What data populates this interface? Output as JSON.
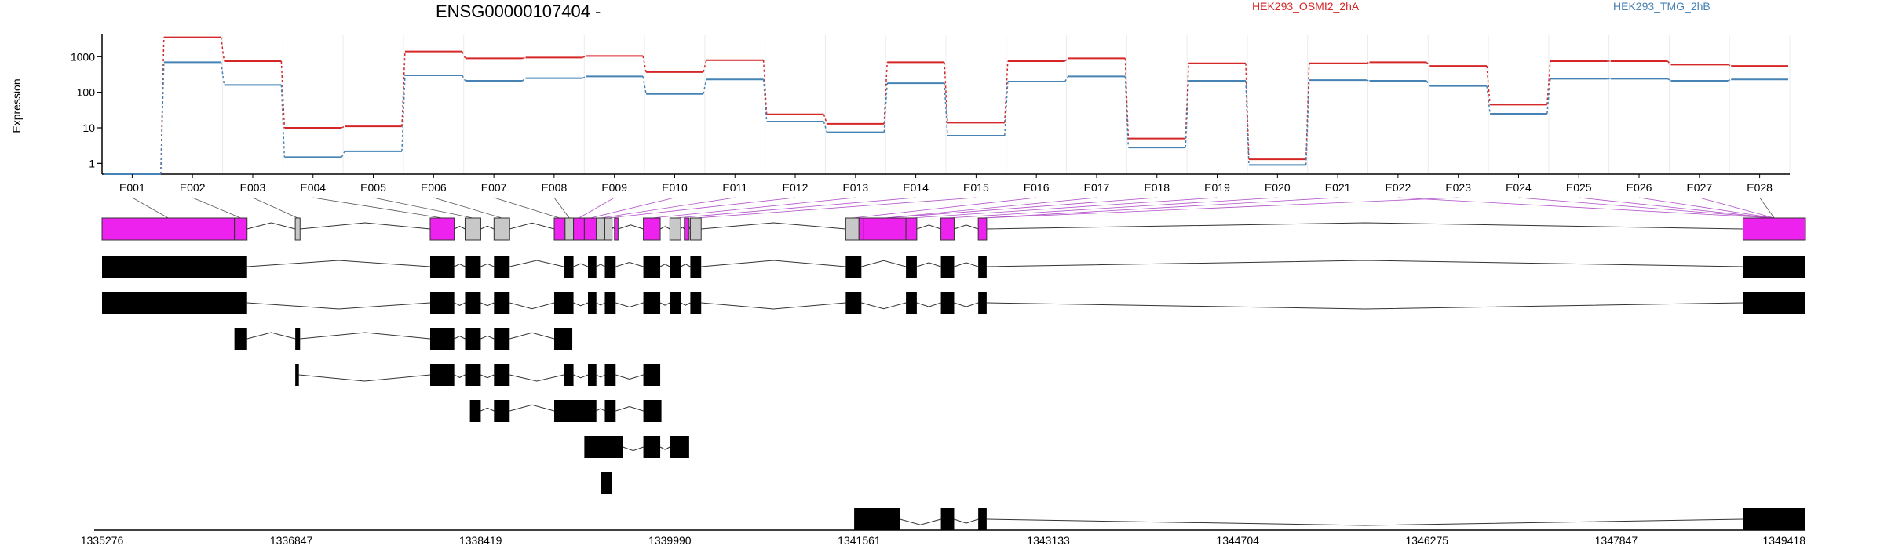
{
  "chart_data": {
    "type": "line",
    "title": "ENSG00000107404 -",
    "ylabel": "Expression",
    "yscale": "log",
    "ylim": [
      0.5,
      4000
    ],
    "yticks": [
      1,
      10,
      100,
      1000
    ],
    "ytick_labels": [
      "1",
      "10",
      "100",
      "1000"
    ],
    "grid": true,
    "legend_placement": "top-right",
    "categories": [
      "E001",
      "E002",
      "E003",
      "E004",
      "E005",
      "E006",
      "E007",
      "E008",
      "E009",
      "E010",
      "E011",
      "E012",
      "E013",
      "E014",
      "E015",
      "E016",
      "E017",
      "E018",
      "E019",
      "E020",
      "E021",
      "E022",
      "E023",
      "E024",
      "E025",
      "E026",
      "E027",
      "E028"
    ],
    "series": [
      {
        "name": "HEK293_OSMI2_2hA",
        "color": "#d62728",
        "values": [
          0.5,
          3500,
          750,
          10,
          11,
          1400,
          900,
          950,
          1050,
          370,
          800,
          24,
          13,
          700,
          14,
          750,
          900,
          5,
          650,
          1.3,
          650,
          700,
          550,
          45,
          750,
          750,
          600,
          550
        ]
      },
      {
        "name": "HEK293_TMG_2hB",
        "color": "#4682b4",
        "values": [
          0.5,
          700,
          160,
          1.5,
          2.2,
          300,
          210,
          250,
          280,
          90,
          230,
          15,
          7.5,
          180,
          6,
          200,
          280,
          2.8,
          210,
          0.9,
          220,
          210,
          150,
          25,
          240,
          240,
          210,
          230
        ]
      }
    ],
    "genomic_axis": {
      "tick_labels": [
        "1335276",
        "1336847",
        "1338419",
        "1339990",
        "1341561",
        "1343133",
        "1344704",
        "1346275",
        "1347847",
        "1349418"
      ],
      "range": [
        1335276,
        1349418
      ]
    },
    "exon_colors": {
      "highlighted": "#ee22ee",
      "not_highlighted": "#c8c8c8",
      "transcript": "#000000"
    }
  }
}
